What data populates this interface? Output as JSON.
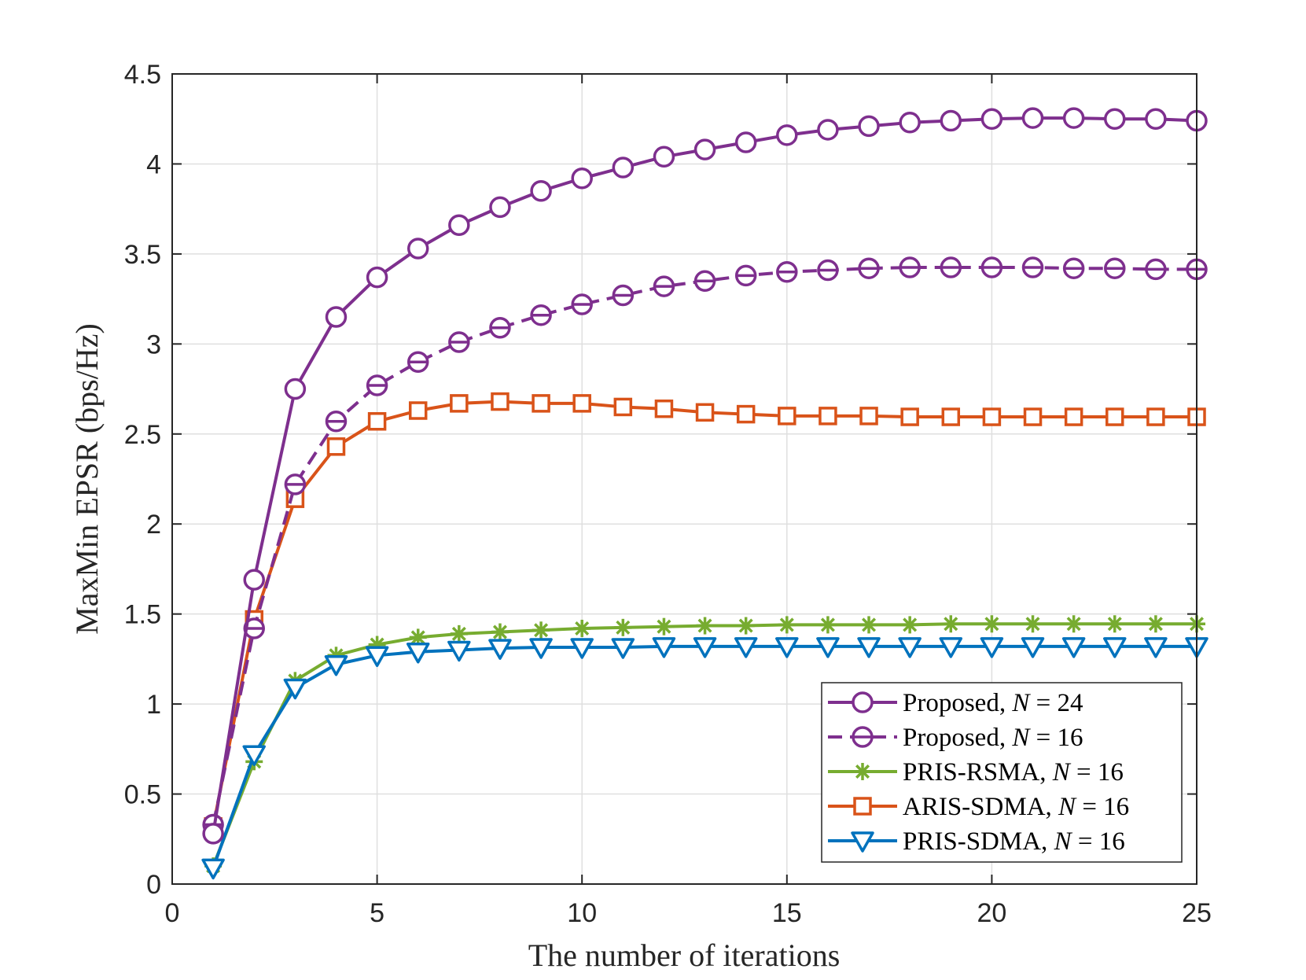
{
  "chart_data": {
    "type": "line",
    "title": "",
    "xlabel": "The number of iterations",
    "ylabel": "MaxMin EPSR (bps/Hz)",
    "xlim": [
      0,
      25
    ],
    "ylim": [
      0,
      4.5
    ],
    "xticks": [
      0,
      5,
      10,
      15,
      20,
      25
    ],
    "yticks": [
      0,
      0.5,
      1,
      1.5,
      2,
      2.5,
      3,
      3.5,
      4,
      4.5
    ],
    "xtick_labels": [
      "0",
      "5",
      "10",
      "15",
      "20",
      "25"
    ],
    "ytick_labels": [
      "0",
      "0.5",
      "1",
      "1.5",
      "2",
      "2.5",
      "3",
      "3.5",
      "4",
      "4.5"
    ],
    "grid": true,
    "legend_position": "bottom-right",
    "x": [
      1,
      2,
      3,
      4,
      5,
      6,
      7,
      8,
      9,
      10,
      11,
      12,
      13,
      14,
      15,
      16,
      17,
      18,
      19,
      20,
      21,
      22,
      23,
      24,
      25
    ],
    "series": [
      {
        "name": "Proposed, N = 24",
        "legend_prefix": "Proposed, ",
        "legend_var": "N",
        "legend_suffix": " = 24",
        "color": "#7E2F8E",
        "marker": "circle",
        "dash": "solid",
        "values": [
          0.28,
          1.69,
          2.75,
          3.15,
          3.37,
          3.53,
          3.66,
          3.76,
          3.85,
          3.92,
          3.98,
          4.04,
          4.08,
          4.12,
          4.16,
          4.19,
          4.21,
          4.23,
          4.24,
          4.25,
          4.255,
          4.255,
          4.25,
          4.25,
          4.24
        ]
      },
      {
        "name": "Proposed, N = 16",
        "legend_prefix": "Proposed, ",
        "legend_var": "N",
        "legend_suffix": " = 16",
        "color": "#7E2F8E",
        "marker": "circle-bar",
        "dash": "dashed",
        "values": [
          0.33,
          1.42,
          2.22,
          2.57,
          2.77,
          2.9,
          3.01,
          3.09,
          3.16,
          3.22,
          3.27,
          3.32,
          3.35,
          3.38,
          3.4,
          3.41,
          3.42,
          3.425,
          3.425,
          3.425,
          3.425,
          3.42,
          3.42,
          3.415,
          3.415
        ]
      },
      {
        "name": "PRIS-RSMA, N = 16",
        "legend_prefix": "PRIS-RSMA, ",
        "legend_var": "N",
        "legend_suffix": " = 16",
        "color": "#77AC30",
        "marker": "asterisk",
        "dash": "solid",
        "values": [
          0.1,
          0.68,
          1.13,
          1.27,
          1.33,
          1.37,
          1.39,
          1.4,
          1.41,
          1.42,
          1.425,
          1.43,
          1.435,
          1.435,
          1.44,
          1.44,
          1.44,
          1.44,
          1.445,
          1.445,
          1.445,
          1.445,
          1.445,
          1.445,
          1.445
        ]
      },
      {
        "name": "ARIS-SDMA, N = 16",
        "legend_prefix": "ARIS-SDMA, ",
        "legend_var": "N",
        "legend_suffix": " = 16",
        "color": "#D95319",
        "marker": "square",
        "dash": "solid",
        "values": [
          0.32,
          1.47,
          2.14,
          2.43,
          2.57,
          2.63,
          2.67,
          2.68,
          2.67,
          2.67,
          2.65,
          2.64,
          2.62,
          2.61,
          2.6,
          2.6,
          2.6,
          2.595,
          2.595,
          2.595,
          2.595,
          2.595,
          2.595,
          2.595,
          2.595
        ]
      },
      {
        "name": "PRIS-SDMA, N = 16",
        "legend_prefix": "PRIS-SDMA, ",
        "legend_var": "N",
        "legend_suffix": " = 16",
        "color": "#0072BD",
        "marker": "triangle-down",
        "dash": "solid",
        "values": [
          0.09,
          0.72,
          1.09,
          1.22,
          1.27,
          1.29,
          1.3,
          1.31,
          1.315,
          1.315,
          1.315,
          1.32,
          1.32,
          1.32,
          1.32,
          1.32,
          1.32,
          1.32,
          1.32,
          1.32,
          1.32,
          1.32,
          1.32,
          1.32,
          1.32
        ]
      }
    ]
  }
}
